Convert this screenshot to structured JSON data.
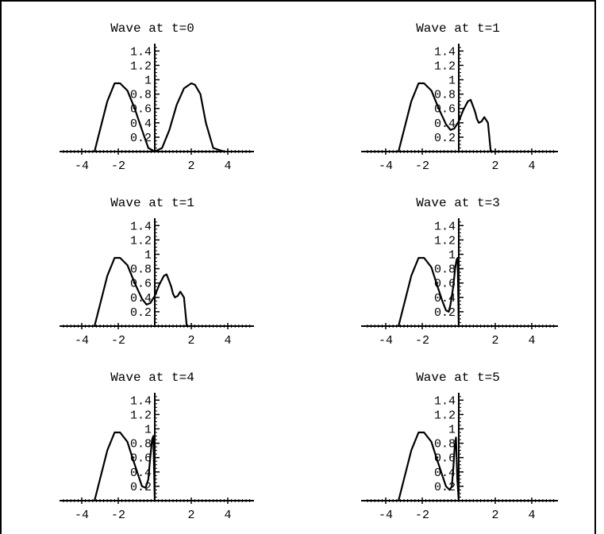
{
  "chart_data": [
    {
      "type": "line",
      "title": "Wave  at  t=0",
      "xticks": [
        -4,
        -2,
        2,
        4
      ],
      "yticks": [
        0.2,
        0.4,
        0.6,
        0.8,
        1,
        1.2,
        1.4
      ],
      "xlim": [
        -5,
        5.5
      ],
      "ylim": [
        0,
        1.5
      ],
      "series": [
        {
          "x": [
            -3.3,
            -3.0,
            -2.6,
            -2.2,
            -1.9,
            -1.5,
            -1.1,
            -0.7,
            -0.35,
            0.0,
            0.4,
            0.8,
            1.2,
            1.6,
            2.0,
            2.2,
            2.5,
            2.8,
            3.2,
            3.8
          ],
          "y": [
            0,
            0.3,
            0.7,
            0.95,
            0.95,
            0.85,
            0.6,
            0.3,
            0.05,
            0.0,
            0.05,
            0.3,
            0.65,
            0.88,
            0.95,
            0.93,
            0.8,
            0.4,
            0.05,
            0
          ]
        }
      ]
    },
    {
      "type": "line",
      "title": "Wave  at  t=1",
      "xticks": [
        -4,
        -2,
        2,
        4
      ],
      "yticks": [
        0.2,
        0.4,
        0.6,
        0.8,
        1,
        1.2,
        1.4
      ],
      "xlim": [
        -5,
        5.5
      ],
      "ylim": [
        0,
        1.5
      ],
      "series": [
        {
          "x": [
            -3.3,
            -3.0,
            -2.6,
            -2.2,
            -1.9,
            -1.5,
            -1.1,
            -0.7,
            -0.45,
            -0.25,
            0.0,
            0.25,
            0.5,
            0.65,
            0.8,
            0.9,
            1.0,
            1.1,
            1.25,
            1.4,
            1.6,
            1.75,
            2.2
          ],
          "y": [
            0,
            0.3,
            0.7,
            0.95,
            0.95,
            0.85,
            0.6,
            0.38,
            0.3,
            0.32,
            0.42,
            0.58,
            0.7,
            0.72,
            0.62,
            0.55,
            0.45,
            0.4,
            0.42,
            0.48,
            0.4,
            0.0,
            0
          ]
        }
      ]
    },
    {
      "type": "line",
      "title": "Wave  at  t=1",
      "xticks": [
        -4,
        -2,
        2,
        4
      ],
      "yticks": [
        0.2,
        0.4,
        0.6,
        0.8,
        1,
        1.2,
        1.4
      ],
      "xlim": [
        -5,
        5.5
      ],
      "ylim": [
        0,
        1.5
      ],
      "series": [
        {
          "x": [
            -3.3,
            -3.0,
            -2.6,
            -2.2,
            -1.9,
            -1.5,
            -1.1,
            -0.7,
            -0.45,
            -0.25,
            0.0,
            0.25,
            0.5,
            0.65,
            0.8,
            0.9,
            1.0,
            1.1,
            1.25,
            1.4,
            1.6,
            1.75,
            2.2
          ],
          "y": [
            0,
            0.3,
            0.7,
            0.95,
            0.95,
            0.85,
            0.6,
            0.38,
            0.3,
            0.32,
            0.42,
            0.58,
            0.7,
            0.72,
            0.62,
            0.55,
            0.45,
            0.4,
            0.42,
            0.48,
            0.4,
            0.0,
            0
          ]
        }
      ]
    },
    {
      "type": "line",
      "title": "Wave  at  t=3",
      "xticks": [
        -4,
        -2,
        2,
        4
      ],
      "yticks": [
        0.2,
        0.4,
        0.6,
        0.8,
        1,
        1.2,
        1.4
      ],
      "xlim": [
        -5,
        5.5
      ],
      "ylim": [
        0,
        1.5
      ],
      "series": [
        {
          "x": [
            -3.3,
            -3.0,
            -2.6,
            -2.2,
            -1.9,
            -1.5,
            -1.2,
            -0.9,
            -0.7,
            -0.55,
            -0.45,
            -0.3,
            -0.2,
            -0.12,
            -0.06,
            0.0
          ],
          "y": [
            0,
            0.3,
            0.7,
            0.95,
            0.95,
            0.82,
            0.58,
            0.35,
            0.22,
            0.2,
            0.3,
            0.55,
            0.8,
            0.92,
            0.95,
            0
          ]
        }
      ]
    },
    {
      "type": "line",
      "title": "Wave  at  t=4",
      "xticks": [
        -4,
        -2,
        2,
        4
      ],
      "yticks": [
        0.2,
        0.4,
        0.6,
        0.8,
        1,
        1.2,
        1.4
      ],
      "xlim": [
        -5,
        5.5
      ],
      "ylim": [
        0,
        1.5
      ],
      "series": [
        {
          "x": [
            -3.3,
            -3.0,
            -2.6,
            -2.2,
            -1.9,
            -1.5,
            -1.2,
            -0.9,
            -0.7,
            -0.5,
            -0.35,
            -0.25,
            -0.15,
            -0.08,
            0.0
          ],
          "y": [
            0,
            0.3,
            0.7,
            0.95,
            0.95,
            0.82,
            0.58,
            0.35,
            0.2,
            0.18,
            0.3,
            0.6,
            0.85,
            0.9,
            0
          ]
        }
      ]
    },
    {
      "type": "line",
      "title": "Wave  at  t=5",
      "xticks": [
        -4,
        -2,
        2,
        4
      ],
      "yticks": [
        0.2,
        0.4,
        0.6,
        0.8,
        1,
        1.2,
        1.4
      ],
      "xlim": [
        -5,
        5.5
      ],
      "ylim": [
        0,
        1.5
      ],
      "series": [
        {
          "x": [
            -3.3,
            -3.0,
            -2.6,
            -2.2,
            -1.9,
            -1.5,
            -1.2,
            -0.9,
            -0.7,
            -0.5,
            -0.38,
            -0.3,
            -0.22,
            -0.15,
            -0.08,
            0.0
          ],
          "y": [
            0,
            0.3,
            0.7,
            0.95,
            0.95,
            0.82,
            0.58,
            0.35,
            0.2,
            0.15,
            0.2,
            0.45,
            0.75,
            0.88,
            0.3,
            0
          ]
        }
      ]
    }
  ]
}
